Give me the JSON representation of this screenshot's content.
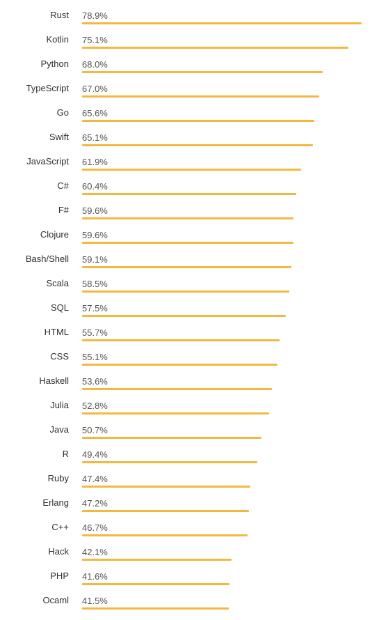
{
  "chart_data": {
    "type": "bar",
    "orientation": "horizontal",
    "value_suffix": "%",
    "bar_color": "#f4b83f",
    "xlim": [
      0,
      78.9
    ],
    "grid": false,
    "categories": [
      "Rust",
      "Kotlin",
      "Python",
      "TypeScript",
      "Go",
      "Swift",
      "JavaScript",
      "C#",
      "F#",
      "Clojure",
      "Bash/Shell",
      "Scala",
      "SQL",
      "HTML",
      "CSS",
      "Haskell",
      "Julia",
      "Java",
      "R",
      "Ruby",
      "Erlang",
      "C++",
      "Hack",
      "PHP",
      "Ocaml"
    ],
    "values": [
      78.9,
      75.1,
      68.0,
      67.0,
      65.6,
      65.1,
      61.9,
      60.4,
      59.6,
      59.6,
      59.1,
      58.5,
      57.5,
      55.7,
      55.1,
      53.6,
      52.8,
      50.7,
      49.4,
      47.4,
      47.2,
      46.7,
      42.1,
      41.6,
      41.5
    ],
    "labels": [
      "78.9%",
      "75.1%",
      "68.0%",
      "67.0%",
      "65.6%",
      "65.1%",
      "61.9%",
      "60.4%",
      "59.6%",
      "59.6%",
      "59.1%",
      "58.5%",
      "57.5%",
      "55.7%",
      "55.1%",
      "53.6%",
      "52.8%",
      "50.7%",
      "49.4%",
      "47.4%",
      "47.2%",
      "46.7%",
      "42.1%",
      "41.6%",
      "41.5%"
    ]
  }
}
